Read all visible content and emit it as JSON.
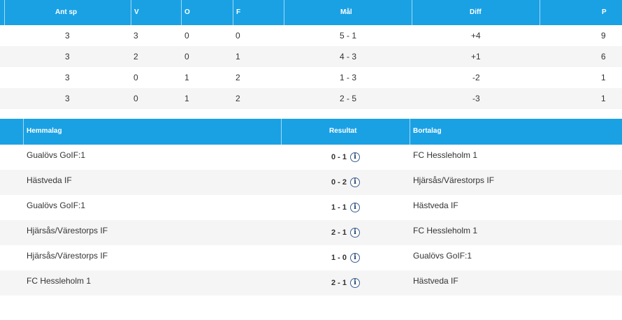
{
  "standings": {
    "headers": {
      "ant_sp": "Ant sp",
      "v": "V",
      "o": "O",
      "f": "F",
      "mal": "Mål",
      "diff": "Diff",
      "p": "P"
    },
    "rows": [
      {
        "ant_sp": "3",
        "v": "3",
        "o": "0",
        "f": "0",
        "mal": "5 - 1",
        "diff": "+4",
        "p": "9"
      },
      {
        "ant_sp": "3",
        "v": "2",
        "o": "0",
        "f": "1",
        "mal": "4 - 3",
        "diff": "+1",
        "p": "6"
      },
      {
        "ant_sp": "3",
        "v": "0",
        "o": "1",
        "f": "2",
        "mal": "1 - 3",
        "diff": "-2",
        "p": "1"
      },
      {
        "ant_sp": "3",
        "v": "0",
        "o": "1",
        "f": "2",
        "mal": "2 - 5",
        "diff": "-3",
        "p": "1"
      }
    ]
  },
  "matches": {
    "headers": {
      "home": "Hemmalag",
      "result": "Resultat",
      "away": "Bortalag"
    },
    "info_icon_glyph": "i",
    "rows": [
      {
        "home": "Gualövs GoIF:1",
        "result": "0 - 1",
        "away": "FC Hessleholm 1"
      },
      {
        "home": "Hästveda IF",
        "result": "0 - 2",
        "away": "Hjärsås/Värestorps IF"
      },
      {
        "home": "Gualövs GoIF:1",
        "result": "1 - 1",
        "away": "Hästveda IF"
      },
      {
        "home": "Hjärsås/Värestorps IF",
        "result": "2 - 1",
        "away": "FC Hessleholm 1"
      },
      {
        "home": "Hjärsås/Värestorps IF",
        "result": "1 - 0",
        "away": "Gualövs GoIF:1"
      },
      {
        "home": "FC Hessleholm 1",
        "result": "2 - 1",
        "away": "Hästveda IF"
      }
    ]
  }
}
